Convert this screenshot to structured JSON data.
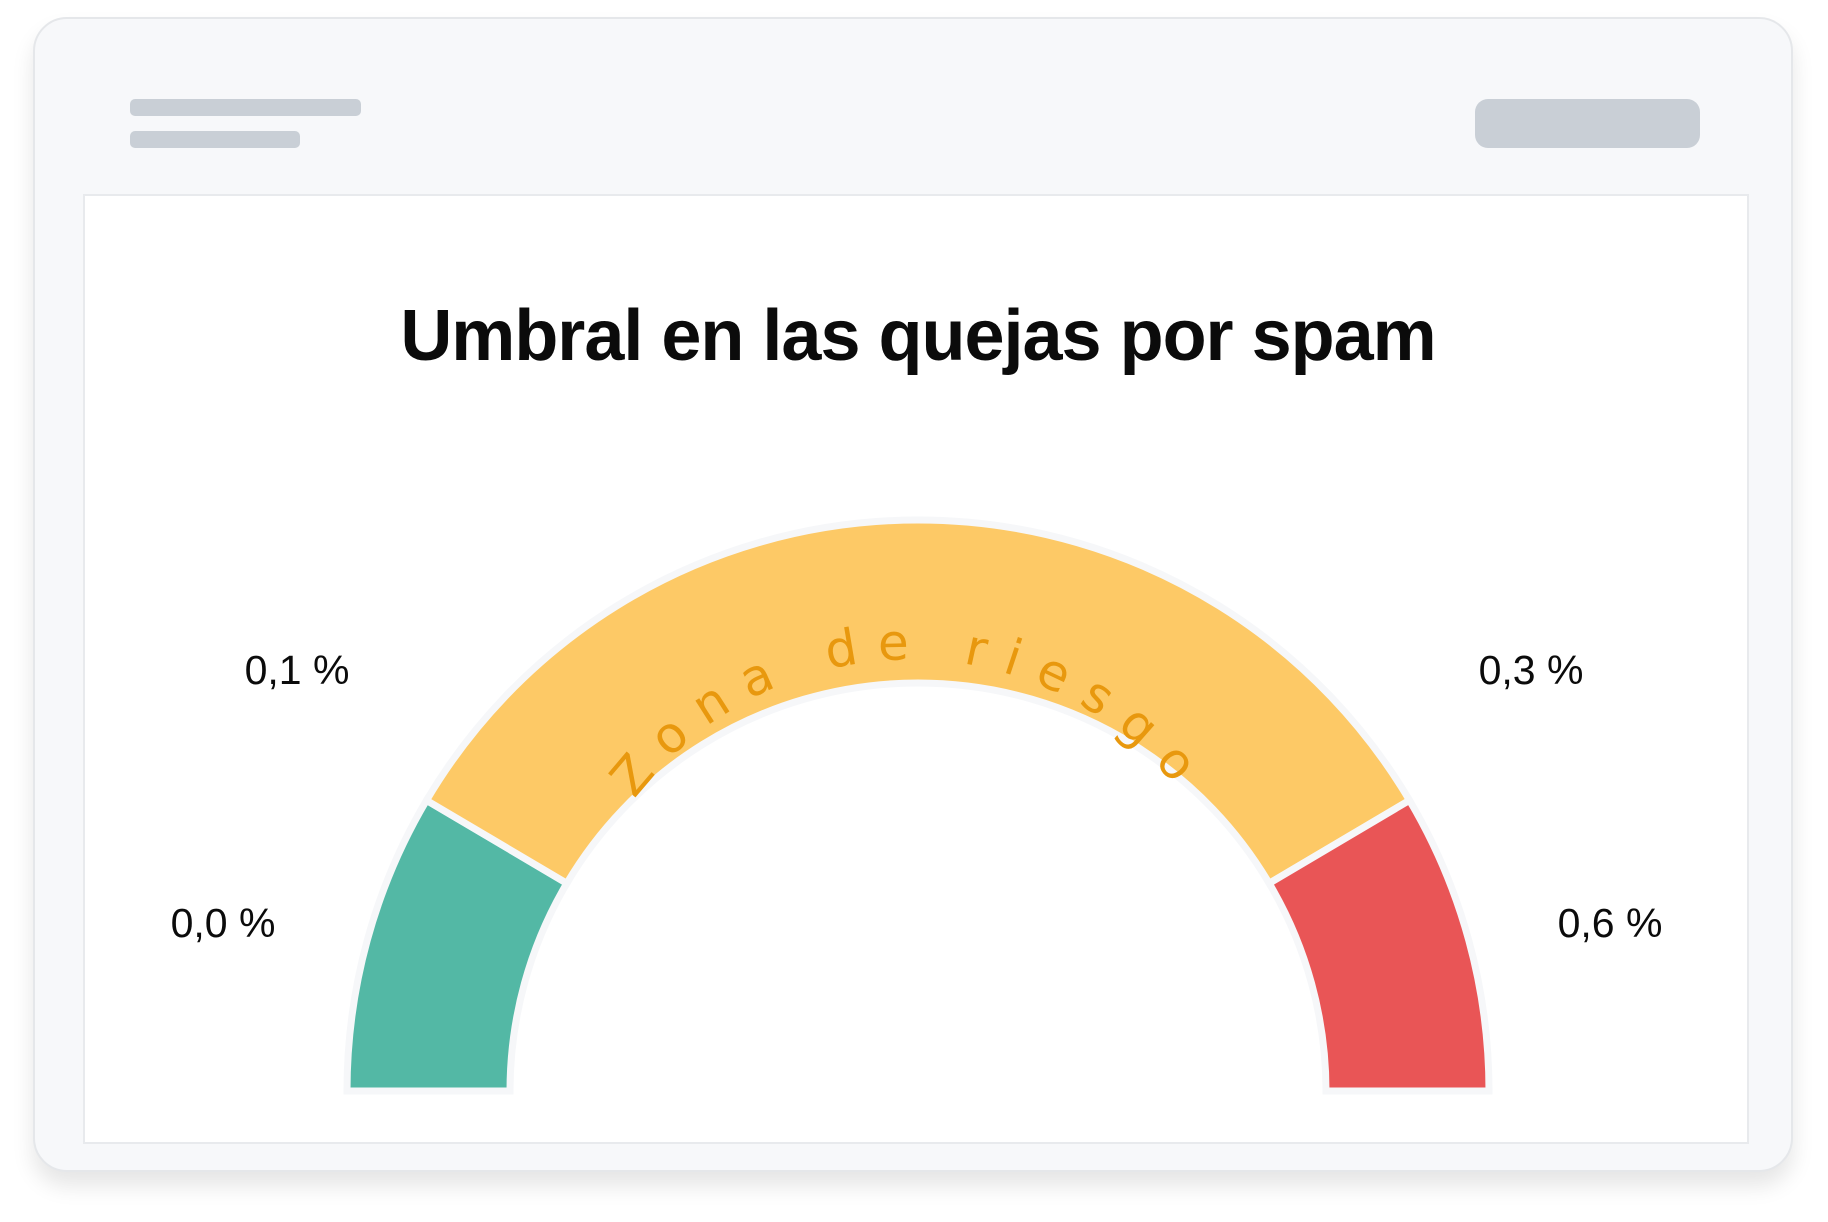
{
  "chart_data": {
    "type": "gauge",
    "title": "Umbral en las quejas por spam",
    "range": [
      0.0,
      0.6
    ],
    "unit": "%",
    "ticks": [
      {
        "value": 0.0,
        "label": "0,0 %"
      },
      {
        "value": 0.1,
        "label": "0,1 %"
      },
      {
        "value": 0.3,
        "label": "0,3 %"
      },
      {
        "value": 0.6,
        "label": "0,6 %"
      }
    ],
    "segments": [
      {
        "from": 0.0,
        "to": 0.1,
        "color": "#53b8a5"
      },
      {
        "from": 0.1,
        "to": 0.3,
        "color": "#fdc966",
        "label": "Zona de riesgo"
      },
      {
        "from": 0.3,
        "to": 0.6,
        "color": "#e95556"
      }
    ],
    "zone_label_color": "#e8980e"
  }
}
